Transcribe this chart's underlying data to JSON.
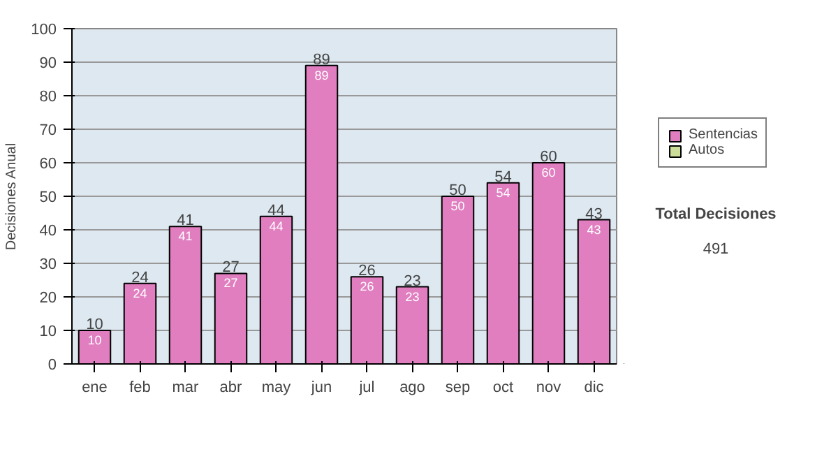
{
  "chart_data": {
    "type": "bar",
    "stacked": true,
    "ylabel": "Decisiones Anual",
    "categories": [
      "ene",
      "feb",
      "mar",
      "abr",
      "may",
      "jun",
      "jul",
      "ago",
      "sep",
      "oct",
      "nov",
      "dic"
    ],
    "series": [
      {
        "name": "Sentencias",
        "color": "#e07ec0",
        "values": [
          10,
          24,
          41,
          27,
          44,
          89,
          26,
          23,
          50,
          54,
          60,
          43
        ]
      },
      {
        "name": "Autos",
        "color": "#ccdd99",
        "values": [
          null,
          null,
          null,
          null,
          null,
          null,
          null,
          null,
          null,
          null,
          null,
          null
        ]
      }
    ],
    "totals": [
      "10",
      "24",
      "41",
      "27",
      "44",
      "89",
      "26",
      "23",
      "50",
      "54",
      "60",
      "43"
    ],
    "data_labels": true,
    "ylim": [
      0,
      100
    ],
    "yticks": [
      0,
      10,
      20,
      30,
      40,
      50,
      60,
      70,
      80,
      90,
      100
    ],
    "grid": "y",
    "legend": "right",
    "annotations": [
      "Total Decisiones",
      "491"
    ]
  }
}
